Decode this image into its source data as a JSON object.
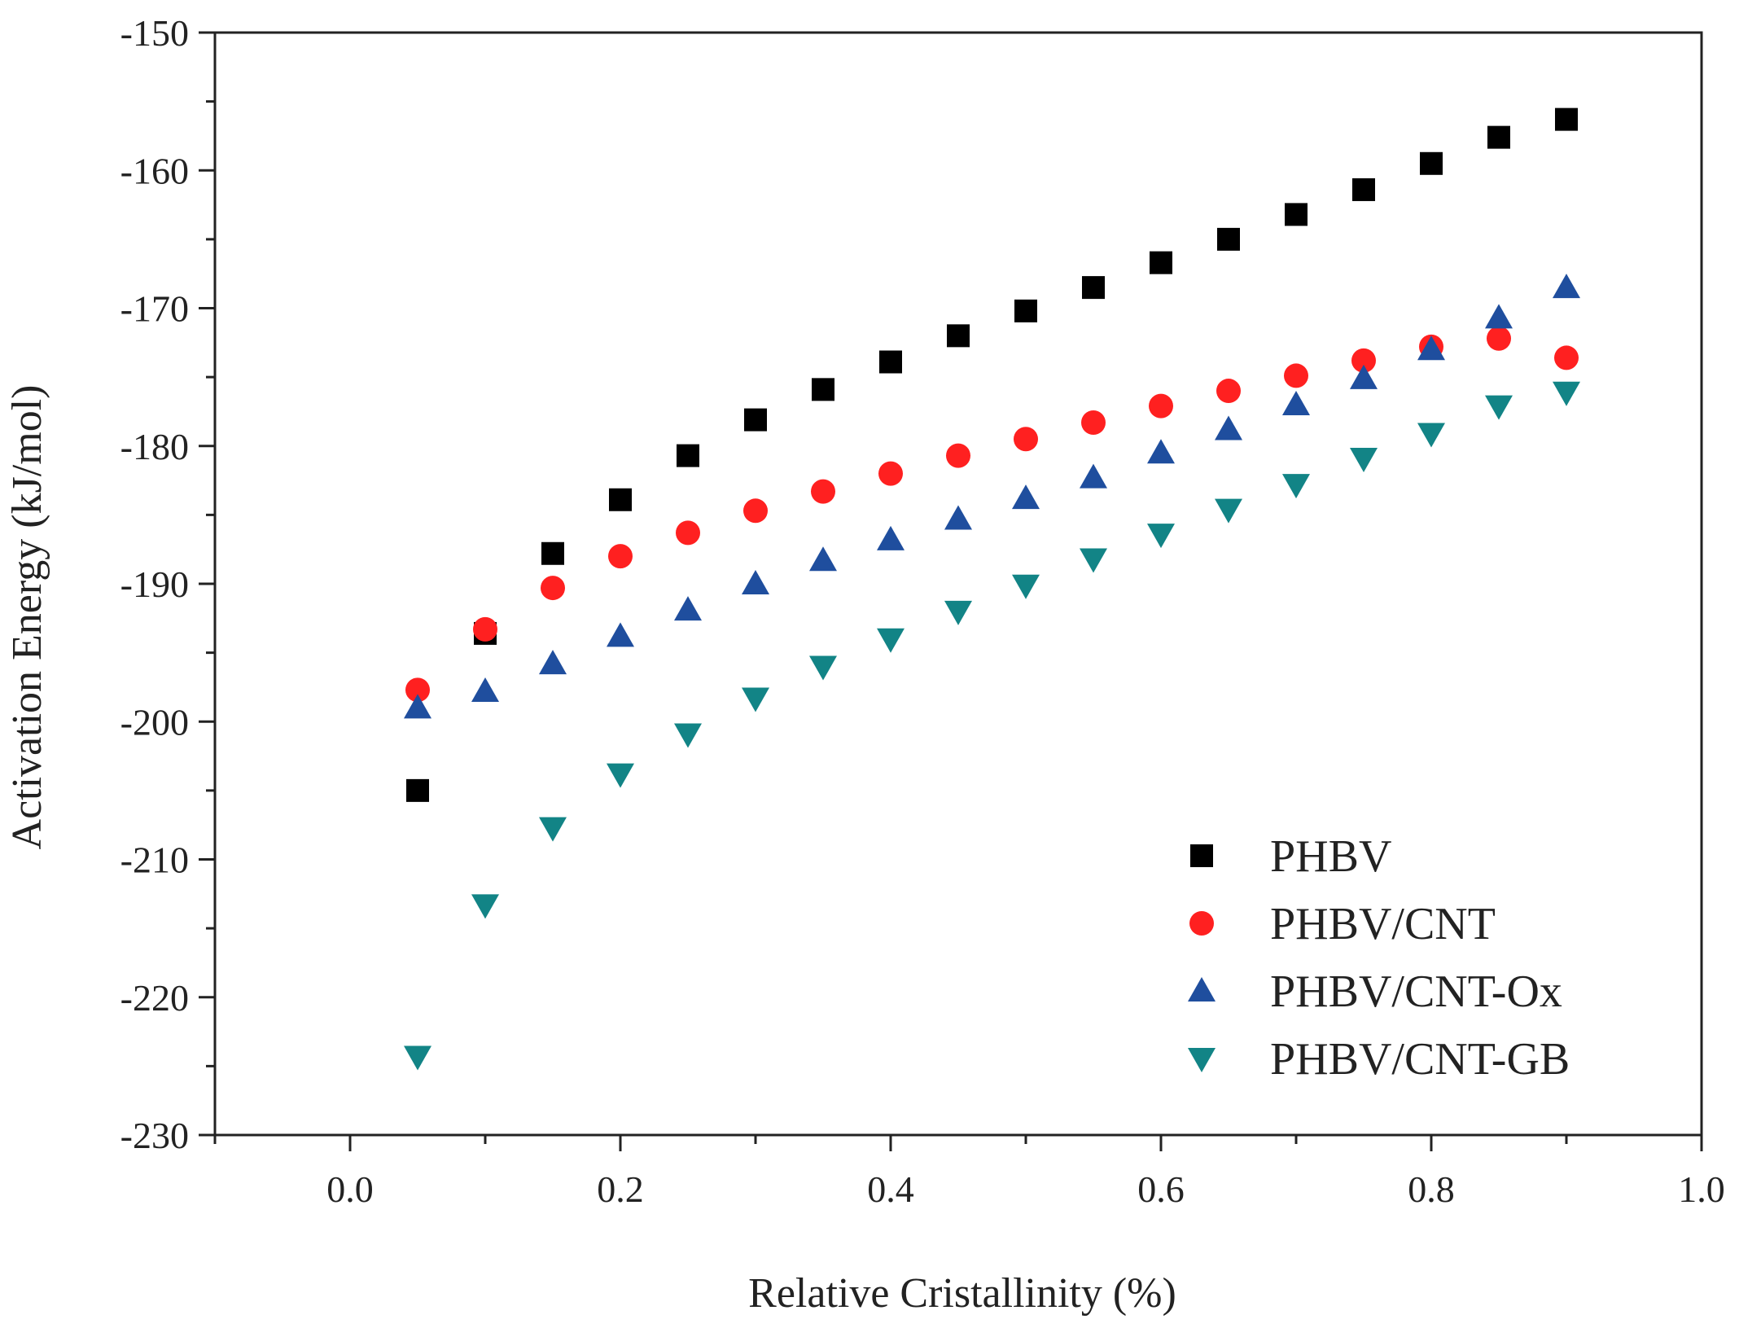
{
  "chart_data": {
    "type": "scatter",
    "title": "",
    "xlabel": "Relative Cristallinity (%)",
    "ylabel": "Activation Energy (kJ/mol)",
    "xlim": [
      -0.1,
      1.0
    ],
    "ylim": [
      -230,
      -150
    ],
    "x_ticks": [
      0.0,
      0.2,
      0.4,
      0.6,
      0.8,
      1.0
    ],
    "x_tick_labels": [
      "0.0",
      "0.2",
      "0.4",
      "0.6",
      "0.8",
      "1.0"
    ],
    "y_ticks": [
      -150,
      -160,
      -170,
      -180,
      -190,
      -200,
      -210,
      -220,
      -230
    ],
    "y_tick_labels": [
      "-150",
      "-160",
      "-170",
      "-180",
      "-190",
      "-200",
      "-210",
      "-220",
      "-230"
    ],
    "grid": false,
    "legend_position": "bottom-right",
    "x": [
      0.05,
      0.1,
      0.15,
      0.2,
      0.25,
      0.3,
      0.35,
      0.4,
      0.45,
      0.5,
      0.55,
      0.6,
      0.65,
      0.7,
      0.75,
      0.8,
      0.85,
      0.9
    ],
    "series": [
      {
        "name": "PHBV",
        "marker": "square",
        "color": "#000000",
        "values": [
          -205.0,
          -193.6,
          -187.8,
          -183.9,
          -180.7,
          -178.1,
          -175.9,
          -173.9,
          -172.0,
          -170.2,
          -168.5,
          -166.7,
          -165.0,
          -163.2,
          -161.4,
          -159.5,
          -157.6,
          -156.3
        ]
      },
      {
        "name": "PHBV/CNT",
        "marker": "circle",
        "color": "#ff2020",
        "values": [
          -197.7,
          -193.3,
          -190.3,
          -188.0,
          -186.3,
          -184.7,
          -183.3,
          -182.0,
          -180.7,
          -179.5,
          -178.3,
          -177.1,
          -176.0,
          -174.9,
          -173.8,
          -172.8,
          -172.2,
          -173.6
        ]
      },
      {
        "name": "PHBV/CNT-Ox",
        "marker": "triangle-up",
        "color": "#1f4e9e",
        "values": [
          -199.0,
          -197.8,
          -195.8,
          -193.8,
          -191.9,
          -190.0,
          -188.3,
          -186.8,
          -185.3,
          -183.8,
          -182.3,
          -180.5,
          -178.8,
          -177.0,
          -175.1,
          -173.0,
          -170.7,
          -168.5
        ]
      },
      {
        "name": "PHBV/CNT-GB",
        "marker": "triangle-down",
        "color": "#128486",
        "values": [
          -224.3,
          -213.3,
          -207.7,
          -203.8,
          -200.9,
          -198.3,
          -196.0,
          -194.0,
          -192.0,
          -190.1,
          -188.2,
          -186.4,
          -184.6,
          -182.8,
          -180.9,
          -179.1,
          -177.1,
          -176.1
        ]
      }
    ]
  }
}
